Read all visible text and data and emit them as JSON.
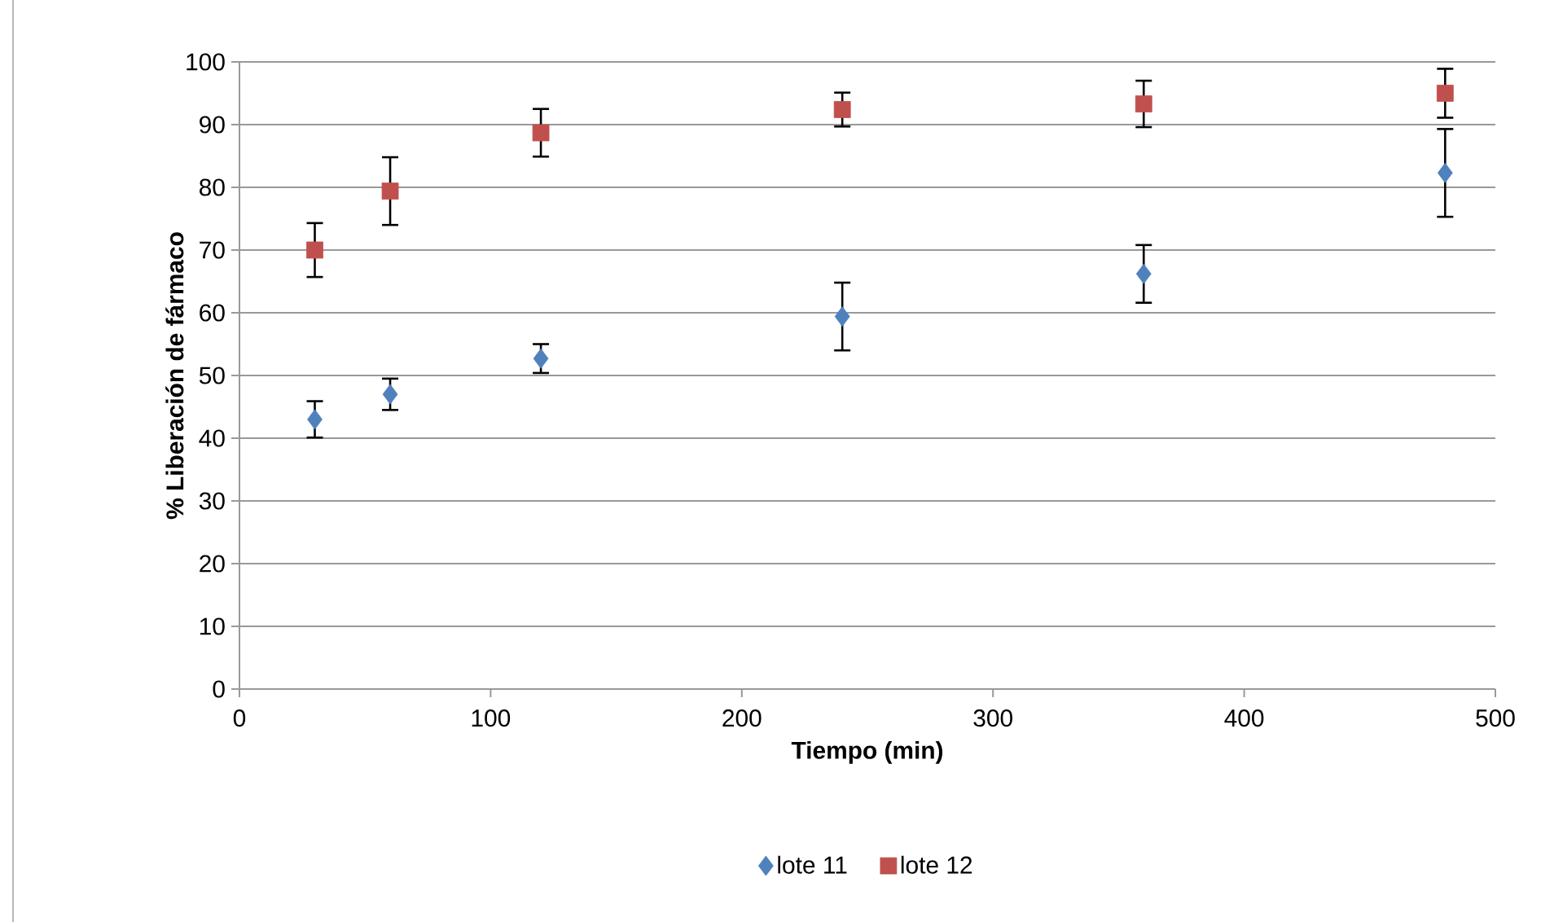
{
  "chart_data": {
    "type": "scatter",
    "xlabel": "Tiempo (min)",
    "ylabel": "% Liberación de fármaco",
    "xlim": [
      0,
      500
    ],
    "xticks": [
      0,
      100,
      200,
      300,
      400,
      500
    ],
    "ylim": [
      0,
      100
    ],
    "yticks": [
      0,
      10,
      20,
      30,
      40,
      50,
      60,
      70,
      80,
      90,
      100
    ],
    "grid": "y",
    "legend": "bottom",
    "series": [
      {
        "name": "lote 11",
        "color": "#4f81bd",
        "marker": "diamond",
        "x": [
          30,
          60,
          120,
          240,
          360,
          480
        ],
        "values": [
          43.0,
          47.0,
          52.7,
          59.4,
          66.2,
          82.3
        ],
        "errors": [
          2.9,
          2.5,
          2.3,
          5.4,
          4.6,
          7.0
        ]
      },
      {
        "name": "lote 12",
        "color": "#c0504d",
        "marker": "square",
        "x": [
          30,
          60,
          120,
          240,
          360,
          480
        ],
        "values": [
          70.0,
          79.4,
          88.7,
          92.4,
          93.3,
          95.0
        ],
        "errors": [
          4.3,
          5.4,
          3.8,
          2.7,
          3.7,
          3.9
        ]
      }
    ]
  }
}
